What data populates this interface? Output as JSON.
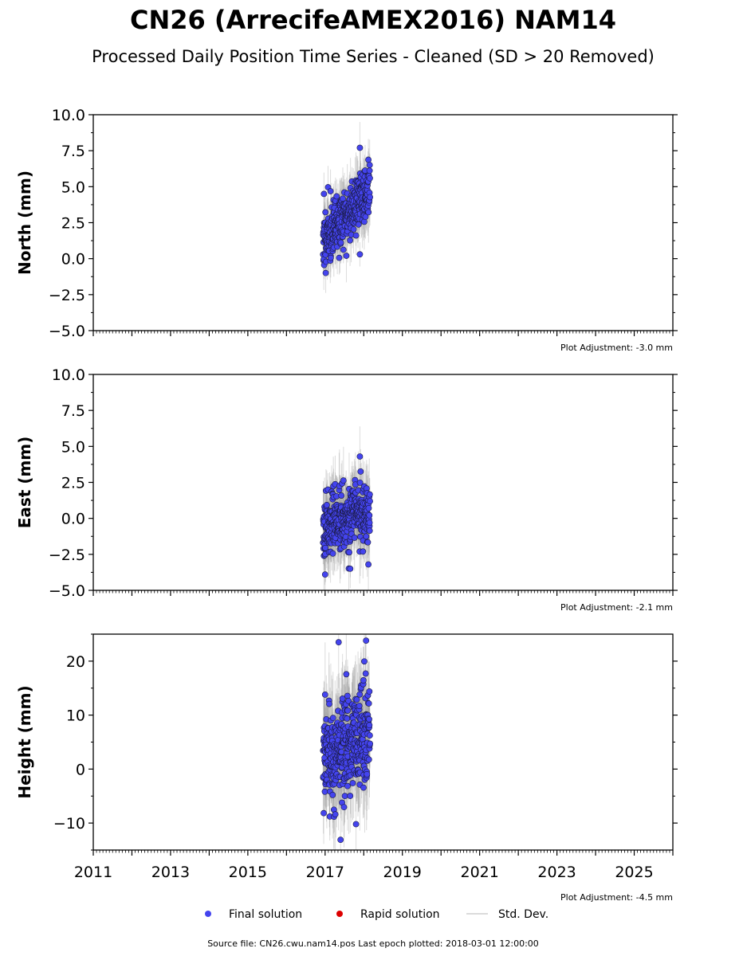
{
  "title": "CN26 (ArrecifeAMEX2016) NAM14",
  "subtitle": "Processed Daily Position Time Series - Cleaned (SD > 20 Removed)",
  "footer": "Source file: CN26.cwu.nam14.pos  Last epoch plotted: 2018-03-01 12:00:00",
  "colors": {
    "final": "#4444ee",
    "rapid": "#dd0000",
    "stddev": "#9a9a9a"
  },
  "legend": {
    "placement": "bottom-center",
    "final": "Final solution",
    "rapid": "Rapid solution",
    "stddev": "Std. Dev."
  },
  "chart_data": [
    {
      "type": "scatter",
      "ylabel": "North (mm)",
      "adjustment": "Plot Adjustment: -3.0 mm",
      "xlim": [
        2011,
        2026
      ],
      "ylim": [
        -5,
        10
      ],
      "yticks": [
        -5,
        -2.5,
        0,
        2.5,
        5,
        7.5,
        10
      ],
      "ytick_labels": [
        "−5.0",
        "−2.5",
        "0.0",
        "2.5",
        "5.0",
        "7.5",
        "10.0"
      ],
      "series": [
        {
          "kind": "final",
          "x_range": [
            2016.95,
            2018.16
          ],
          "trend": [
            1.2,
            4.9
          ],
          "spread": 0.95,
          "sigma": 1.5,
          "count": 380,
          "seed": 11,
          "extra_points": [
            [
              2017.9,
              7.7
            ],
            [
              2017.9,
              0.3
            ],
            [
              2016.97,
              4.5
            ],
            [
              2017.55,
              0.2
            ]
          ]
        }
      ]
    },
    {
      "type": "scatter",
      "ylabel": "East (mm)",
      "adjustment": "Plot Adjustment: -2.1 mm",
      "xlim": [
        2011,
        2026
      ],
      "ylim": [
        -5,
        10
      ],
      "yticks": [
        -5,
        -2.5,
        0,
        2.5,
        5,
        7.5,
        10
      ],
      "ytick_labels": [
        "−5.0",
        "−2.5",
        "0.0",
        "2.5",
        "5.0",
        "7.5",
        "10.0"
      ],
      "series": [
        {
          "kind": "final",
          "x_range": [
            2016.95,
            2018.16
          ],
          "trend": [
            -0.4,
            0.6
          ],
          "spread": 1.0,
          "sigma": 1.9,
          "count": 380,
          "seed": 23,
          "extra_points": [
            [
              2017.9,
              4.3
            ],
            [
              2017.0,
              -3.9
            ],
            [
              2017.65,
              -3.5
            ],
            [
              2018.12,
              -3.2
            ]
          ]
        }
      ]
    },
    {
      "type": "scatter",
      "ylabel": "Height (mm)",
      "adjustment": "Plot Adjustment: -4.5 mm",
      "xlim": [
        2011,
        2026
      ],
      "ylim": [
        -15,
        25
      ],
      "yticks": [
        -10,
        0,
        10,
        20
      ],
      "ytick_labels": [
        "−10",
        "0",
        "10",
        "20"
      ],
      "xticks": [
        2011,
        2013,
        2015,
        2017,
        2019,
        2021,
        2023,
        2025
      ],
      "xtick_labels": [
        "2011",
        "2013",
        "2015",
        "2017",
        "2019",
        "2021",
        "2023",
        "2025"
      ],
      "series": [
        {
          "kind": "final",
          "x_range": [
            2016.95,
            2018.16
          ],
          "trend": [
            1.0,
            7.0
          ],
          "spread": 4.5,
          "sigma": 7.5,
          "count": 380,
          "seed": 37,
          "extra_points": [
            [
              2017.35,
              23.5
            ],
            [
              2018.06,
              23.8
            ],
            [
              2017.4,
              -13.1
            ],
            [
              2017.8,
              -10.2
            ],
            [
              2017.0,
              13.8
            ]
          ]
        }
      ]
    }
  ]
}
